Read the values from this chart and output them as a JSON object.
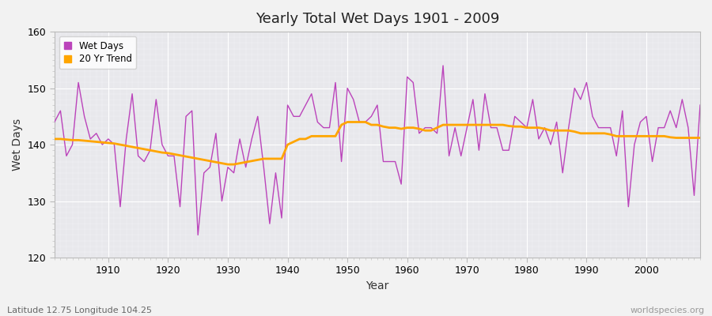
{
  "title": "Yearly Total Wet Days 1901 - 2009",
  "xlabel": "Year",
  "ylabel": "Wet Days",
  "xlim": [
    1901,
    2009
  ],
  "ylim": [
    120,
    160
  ],
  "yticks": [
    120,
    130,
    140,
    150,
    160
  ],
  "xticks": [
    1910,
    1920,
    1930,
    1940,
    1950,
    1960,
    1970,
    1980,
    1990,
    2000
  ],
  "footnote_left": "Latitude 12.75 Longitude 104.25",
  "footnote_right": "worldspecies.org",
  "wet_days_color": "#BB44BB",
  "trend_color": "#FFA500",
  "plot_bg_color": "#E8E8EC",
  "fig_bg_color": "#F2F2F2",
  "years": [
    1901,
    1902,
    1903,
    1904,
    1905,
    1906,
    1907,
    1908,
    1909,
    1910,
    1911,
    1912,
    1913,
    1914,
    1915,
    1916,
    1917,
    1918,
    1919,
    1920,
    1921,
    1922,
    1923,
    1924,
    1925,
    1926,
    1927,
    1928,
    1929,
    1930,
    1931,
    1932,
    1933,
    1934,
    1935,
    1936,
    1937,
    1938,
    1939,
    1940,
    1941,
    1942,
    1943,
    1944,
    1945,
    1946,
    1947,
    1948,
    1949,
    1950,
    1951,
    1952,
    1953,
    1954,
    1955,
    1956,
    1957,
    1958,
    1959,
    1960,
    1961,
    1962,
    1963,
    1964,
    1965,
    1966,
    1967,
    1968,
    1969,
    1970,
    1971,
    1972,
    1973,
    1974,
    1975,
    1976,
    1977,
    1978,
    1979,
    1980,
    1981,
    1982,
    1983,
    1984,
    1985,
    1986,
    1987,
    1988,
    1989,
    1990,
    1991,
    1992,
    1993,
    1994,
    1995,
    1996,
    1997,
    1998,
    1999,
    2000,
    2001,
    2002,
    2003,
    2004,
    2005,
    2006,
    2007,
    2008,
    2009
  ],
  "wet_days": [
    144,
    146,
    138,
    140,
    151,
    145,
    141,
    142,
    140,
    141,
    140,
    129,
    141,
    149,
    138,
    137,
    139,
    148,
    140,
    138,
    138,
    129,
    145,
    146,
    124,
    135,
    136,
    142,
    130,
    136,
    135,
    141,
    136,
    141,
    145,
    136,
    126,
    135,
    127,
    147,
    145,
    145,
    147,
    149,
    144,
    143,
    143,
    151,
    137,
    150,
    148,
    144,
    144,
    145,
    147,
    137,
    137,
    137,
    133,
    152,
    151,
    142,
    143,
    143,
    142,
    154,
    138,
    143,
    138,
    143,
    148,
    139,
    149,
    143,
    143,
    139,
    139,
    145,
    144,
    143,
    148,
    141,
    143,
    140,
    144,
    135,
    143,
    150,
    148,
    151,
    145,
    143,
    143,
    143,
    138,
    146,
    129,
    140,
    144,
    145,
    137,
    143,
    143,
    146,
    143,
    148,
    143,
    131,
    147
  ],
  "trend": [
    141.0,
    141.0,
    140.9,
    140.8,
    140.8,
    140.7,
    140.6,
    140.5,
    140.4,
    140.3,
    140.2,
    140.0,
    139.8,
    139.6,
    139.4,
    139.2,
    139.0,
    138.8,
    138.6,
    138.5,
    138.3,
    138.1,
    137.9,
    137.7,
    137.5,
    137.3,
    137.1,
    136.9,
    136.7,
    136.5,
    136.5,
    136.7,
    136.9,
    137.1,
    137.3,
    137.5,
    137.5,
    137.5,
    137.5,
    140.0,
    140.5,
    141.0,
    141.0,
    141.5,
    141.5,
    141.5,
    141.5,
    141.5,
    143.5,
    144.0,
    144.0,
    144.0,
    144.0,
    143.5,
    143.5,
    143.2,
    143.0,
    143.0,
    142.8,
    143.0,
    143.0,
    142.8,
    142.5,
    142.5,
    143.0,
    143.5,
    143.5,
    143.5,
    143.5,
    143.5,
    143.5,
    143.5,
    143.5,
    143.5,
    143.5,
    143.5,
    143.3,
    143.2,
    143.2,
    143.0,
    143.0,
    143.0,
    142.8,
    142.5,
    142.5,
    142.5,
    142.5,
    142.3,
    142.0,
    142.0,
    142.0,
    142.0,
    142.0,
    141.8,
    141.5,
    141.5,
    141.5,
    141.5,
    141.5,
    141.5,
    141.5,
    141.5,
    141.5,
    141.3,
    141.2,
    141.2,
    141.2,
    141.2,
    141.2
  ]
}
